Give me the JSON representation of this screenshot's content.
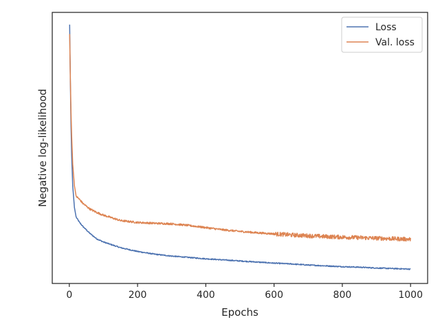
{
  "chart_data": {
    "type": "line",
    "title": "",
    "xlabel": "Epochs",
    "ylabel": "Negative log-likelihood",
    "xlim": [
      -50,
      1050
    ],
    "ylim": [
      0.0,
      1.0
    ],
    "xticks": [
      0,
      200,
      400,
      600,
      800,
      1000
    ],
    "xtick_labels": [
      "0",
      "200",
      "400",
      "600",
      "800",
      "1000"
    ],
    "yticks_shown": false,
    "grid": false,
    "legend_position": "top-right",
    "series": [
      {
        "name": "Loss",
        "color": "#4c72b0",
        "x": [
          1,
          3,
          5,
          7,
          10,
          15,
          20,
          30,
          40,
          60,
          80,
          100,
          150,
          200,
          250,
          300,
          350,
          400,
          450,
          500,
          550,
          600,
          650,
          700,
          750,
          800,
          850,
          900,
          950,
          1000
        ],
        "y": [
          0.955,
          0.75,
          0.58,
          0.47,
          0.36,
          0.28,
          0.245,
          0.225,
          0.21,
          0.185,
          0.165,
          0.153,
          0.132,
          0.118,
          0.108,
          0.101,
          0.096,
          0.091,
          0.087,
          0.083,
          0.079,
          0.075,
          0.072,
          0.068,
          0.065,
          0.062,
          0.06,
          0.057,
          0.055,
          0.053
        ]
      },
      {
        "name": "Val. loss",
        "color": "#dd8452",
        "x": [
          1,
          3,
          5,
          7,
          10,
          15,
          20,
          30,
          40,
          60,
          80,
          100,
          150,
          200,
          250,
          300,
          350,
          400,
          450,
          500,
          550,
          600,
          650,
          700,
          750,
          800,
          850,
          900,
          950,
          1000
        ],
        "y": [
          0.92,
          0.76,
          0.63,
          0.54,
          0.44,
          0.36,
          0.322,
          0.31,
          0.295,
          0.275,
          0.262,
          0.252,
          0.232,
          0.225,
          0.222,
          0.22,
          0.214,
          0.206,
          0.198,
          0.192,
          0.187,
          0.183,
          0.179,
          0.176,
          0.173,
          0.171,
          0.169,
          0.167,
          0.165,
          0.163
        ]
      }
    ]
  }
}
